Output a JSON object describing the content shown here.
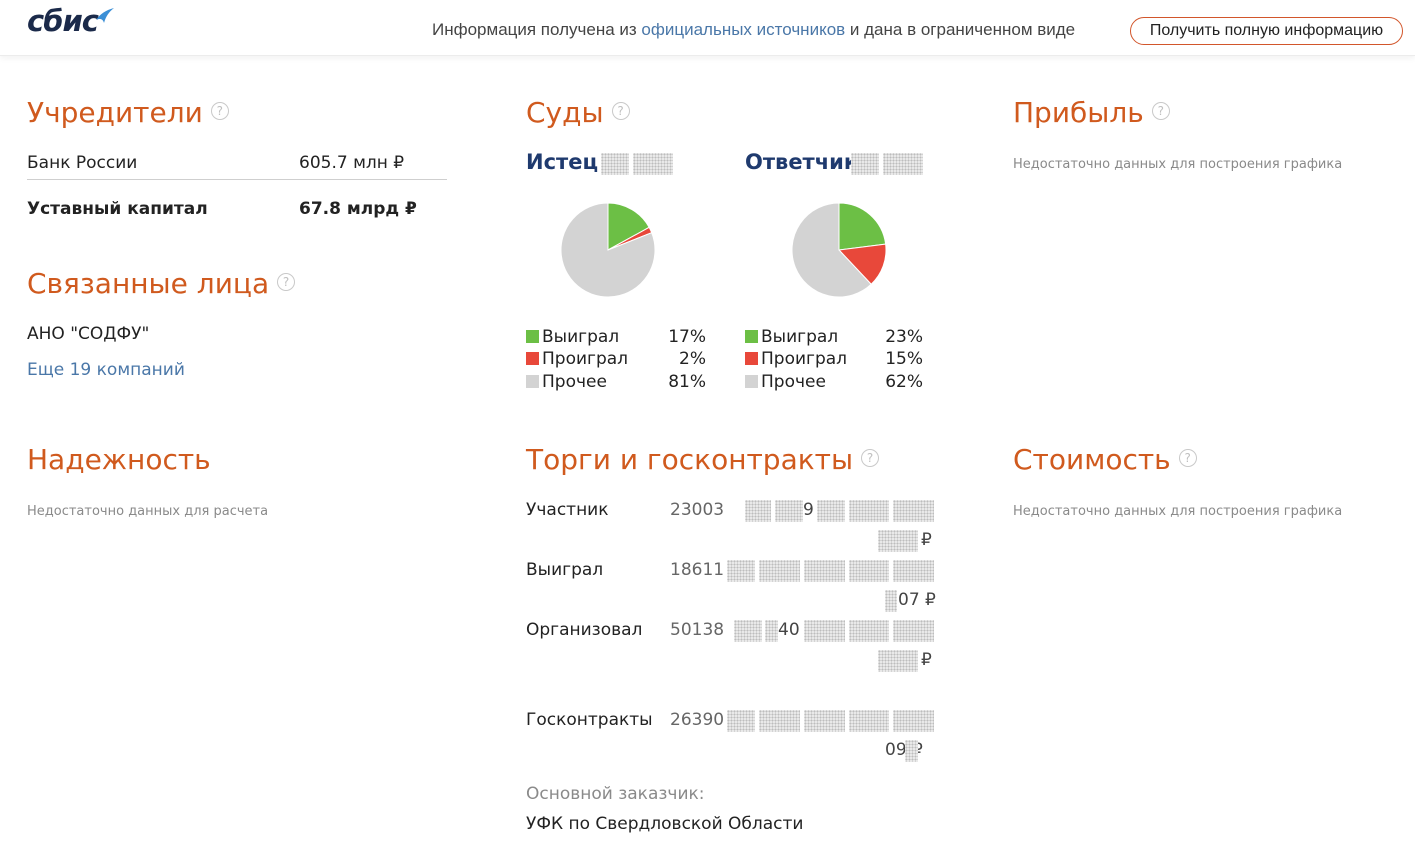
{
  "header": {
    "logo_text": "сбис",
    "info_prefix": "Информация получена из",
    "info_link": "официальных источников",
    "info_suffix": "и дана в ограниченном виде",
    "full_info_button": "Получить полную информацию"
  },
  "founders": {
    "title": "Учредители",
    "items": [
      {
        "name": "Банк России",
        "value": "605.7 млн ₽"
      }
    ],
    "capital_label": "Уставный капитал",
    "capital_value": "67.8 млрд ₽"
  },
  "related": {
    "title": "Связанные лица",
    "items": [
      "АНО \"СОДФУ\""
    ],
    "more_link": "Еще 19 компаний"
  },
  "courts": {
    "title": "Суды",
    "plaintiff": {
      "title": "Истец",
      "legend": [
        {
          "label": "Выиграл",
          "pct": "17%",
          "value": 17,
          "color": "#6cbf45"
        },
        {
          "label": "Проиграл",
          "pct": "2%",
          "value": 2,
          "color": "#e8483a"
        },
        {
          "label": "Прочее",
          "pct": "81%",
          "value": 81,
          "color": "#d3d3d3"
        }
      ]
    },
    "defendant": {
      "title": "Ответчик",
      "legend": [
        {
          "label": "Выиграл",
          "pct": "23%",
          "value": 23,
          "color": "#6cbf45"
        },
        {
          "label": "Проиграл",
          "pct": "15%",
          "value": 15,
          "color": "#e8483a"
        },
        {
          "label": "Прочее",
          "pct": "62%",
          "value": 62,
          "color": "#d3d3d3"
        }
      ]
    }
  },
  "profit": {
    "title": "Прибыль",
    "note": "Недостаточно данных для построения графика"
  },
  "reliability": {
    "title": "Надежность",
    "note": "Недостаточно данных для расчета"
  },
  "tenders": {
    "title": "Торги и госконтракты",
    "rows": [
      {
        "label": "Участник",
        "count": "23003",
        "frag_top": "9",
        "frag_bottom": "₽"
      },
      {
        "label": "Выиграл",
        "count": "18611",
        "frag_top": "",
        "frag_bottom": "07 ₽"
      },
      {
        "label": "Организовал",
        "count": "50138",
        "frag_top": "40",
        "frag_bottom": "₽"
      },
      {
        "label": "Госконтракты",
        "count": "26390",
        "frag_top": "",
        "frag_bottom": "09 ₽"
      }
    ],
    "main_customer_label": "Основной заказчик:",
    "main_customer": "УФК по Свердловской Области"
  },
  "cost": {
    "title": "Стоимость",
    "note": "Недостаточно данных для построения графика"
  }
}
